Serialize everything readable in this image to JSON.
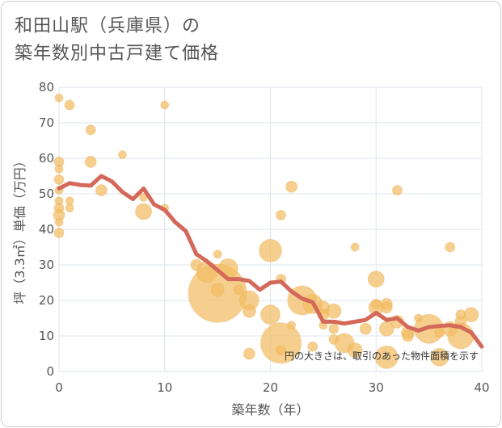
{
  "title_line1": "和田山駅（兵庫県）の",
  "title_line2": "築年数別中古戸建て価格",
  "chart_data": {
    "type": "scatter",
    "xlabel": "築年数（年）",
    "ylabel": "坪（3.3㎡）単価（万円）",
    "xlim": [
      0,
      40
    ],
    "ylim": [
      0,
      80
    ],
    "xticks": [
      0,
      10,
      20,
      30,
      40
    ],
    "yticks": [
      0,
      10,
      20,
      30,
      40,
      50,
      60,
      70,
      80
    ],
    "grid": true,
    "annotation": "円の大きさは、取引のあった物件面積を示す",
    "colors": {
      "bubble": "#f2bd63",
      "line": "#d4695a",
      "grid": "#dce6ef"
    },
    "points": [
      {
        "x": 0,
        "y": 77,
        "s": 5
      },
      {
        "x": 0,
        "y": 59,
        "s": 6
      },
      {
        "x": 0,
        "y": 57,
        "s": 5
      },
      {
        "x": 0,
        "y": 54,
        "s": 6
      },
      {
        "x": 0,
        "y": 51,
        "s": 5
      },
      {
        "x": 0,
        "y": 48,
        "s": 5
      },
      {
        "x": 0,
        "y": 46,
        "s": 6
      },
      {
        "x": 0,
        "y": 44,
        "s": 7
      },
      {
        "x": 0,
        "y": 42,
        "s": 5
      },
      {
        "x": 0,
        "y": 39,
        "s": 6
      },
      {
        "x": 1,
        "y": 75,
        "s": 6
      },
      {
        "x": 1,
        "y": 48,
        "s": 5
      },
      {
        "x": 1,
        "y": 46,
        "s": 5
      },
      {
        "x": 3,
        "y": 68,
        "s": 6
      },
      {
        "x": 3,
        "y": 59,
        "s": 7
      },
      {
        "x": 4,
        "y": 51,
        "s": 7
      },
      {
        "x": 6,
        "y": 61,
        "s": 5
      },
      {
        "x": 8,
        "y": 49,
        "s": 5
      },
      {
        "x": 8,
        "y": 45,
        "s": 10
      },
      {
        "x": 10,
        "y": 75,
        "s": 5
      },
      {
        "x": 10,
        "y": 46,
        "s": 5
      },
      {
        "x": 13,
        "y": 30,
        "s": 7
      },
      {
        "x": 14,
        "y": 28,
        "s": 13
      },
      {
        "x": 15,
        "y": 33,
        "s": 5
      },
      {
        "x": 15,
        "y": 22,
        "s": 36
      },
      {
        "x": 15,
        "y": 23,
        "s": 8
      },
      {
        "x": 16,
        "y": 29,
        "s": 12
      },
      {
        "x": 17,
        "y": 23,
        "s": 6
      },
      {
        "x": 18,
        "y": 20,
        "s": 12
      },
      {
        "x": 18,
        "y": 17,
        "s": 8
      },
      {
        "x": 18,
        "y": 5,
        "s": 7
      },
      {
        "x": 20,
        "y": 34,
        "s": 14
      },
      {
        "x": 20,
        "y": 16,
        "s": 12
      },
      {
        "x": 21,
        "y": 44,
        "s": 6
      },
      {
        "x": 21,
        "y": 26,
        "s": 6
      },
      {
        "x": 21,
        "y": 8,
        "s": 25
      },
      {
        "x": 21,
        "y": 6,
        "s": 6
      },
      {
        "x": 22,
        "y": 52,
        "s": 7
      },
      {
        "x": 22,
        "y": 13,
        "s": 5
      },
      {
        "x": 23,
        "y": 20,
        "s": 18
      },
      {
        "x": 24,
        "y": 19,
        "s": 12
      },
      {
        "x": 24,
        "y": 7,
        "s": 6
      },
      {
        "x": 25,
        "y": 18,
        "s": 8
      },
      {
        "x": 25,
        "y": 16,
        "s": 7
      },
      {
        "x": 25,
        "y": 13,
        "s": 5
      },
      {
        "x": 26,
        "y": 17,
        "s": 9
      },
      {
        "x": 26,
        "y": 12,
        "s": 6
      },
      {
        "x": 26,
        "y": 9,
        "s": 6
      },
      {
        "x": 27,
        "y": 8,
        "s": 12
      },
      {
        "x": 28,
        "y": 35,
        "s": 5
      },
      {
        "x": 28,
        "y": 6,
        "s": 9
      },
      {
        "x": 29,
        "y": 12,
        "s": 7
      },
      {
        "x": 30,
        "y": 26,
        "s": 10
      },
      {
        "x": 30,
        "y": 19,
        "s": 6
      },
      {
        "x": 30,
        "y": 18,
        "s": 9
      },
      {
        "x": 31,
        "y": 19,
        "s": 7
      },
      {
        "x": 31,
        "y": 18,
        "s": 7
      },
      {
        "x": 31,
        "y": 12,
        "s": 9
      },
      {
        "x": 31,
        "y": 4,
        "s": 14
      },
      {
        "x": 32,
        "y": 51,
        "s": 6
      },
      {
        "x": 32,
        "y": 14,
        "s": 8
      },
      {
        "x": 33,
        "y": 11,
        "s": 8
      },
      {
        "x": 33,
        "y": 10,
        "s": 7
      },
      {
        "x": 34,
        "y": 15,
        "s": 5
      },
      {
        "x": 35,
        "y": 12,
        "s": 18
      },
      {
        "x": 36,
        "y": 11,
        "s": 6
      },
      {
        "x": 36,
        "y": 4,
        "s": 11
      },
      {
        "x": 37,
        "y": 35,
        "s": 6
      },
      {
        "x": 37,
        "y": 12,
        "s": 9
      },
      {
        "x": 38,
        "y": 16,
        "s": 6
      },
      {
        "x": 38,
        "y": 14,
        "s": 7
      },
      {
        "x": 38,
        "y": 10,
        "s": 16
      },
      {
        "x": 39,
        "y": 16,
        "s": 9
      }
    ],
    "average_line": [
      {
        "x": 0,
        "y": 51.5
      },
      {
        "x": 1,
        "y": 53
      },
      {
        "x": 2,
        "y": 52.5
      },
      {
        "x": 3,
        "y": 52.3
      },
      {
        "x": 4,
        "y": 55
      },
      {
        "x": 5,
        "y": 53.5
      },
      {
        "x": 6,
        "y": 50.5
      },
      {
        "x": 7,
        "y": 48.5
      },
      {
        "x": 8,
        "y": 51.5
      },
      {
        "x": 9,
        "y": 47
      },
      {
        "x": 10,
        "y": 45.5
      },
      {
        "x": 11,
        "y": 42
      },
      {
        "x": 12,
        "y": 39.5
      },
      {
        "x": 13,
        "y": 33
      },
      {
        "x": 14,
        "y": 31
      },
      {
        "x": 15,
        "y": 28.5
      },
      {
        "x": 16,
        "y": 26
      },
      {
        "x": 17,
        "y": 26
      },
      {
        "x": 18,
        "y": 25.5
      },
      {
        "x": 19,
        "y": 23
      },
      {
        "x": 20,
        "y": 25
      },
      {
        "x": 21,
        "y": 25.3
      },
      {
        "x": 22,
        "y": 22.5
      },
      {
        "x": 23,
        "y": 20.5
      },
      {
        "x": 24,
        "y": 19.5
      },
      {
        "x": 25,
        "y": 14
      },
      {
        "x": 26,
        "y": 14
      },
      {
        "x": 27,
        "y": 13.5
      },
      {
        "x": 28,
        "y": 14
      },
      {
        "x": 29,
        "y": 14.5
      },
      {
        "x": 30,
        "y": 16.5
      },
      {
        "x": 31,
        "y": 14.5
      },
      {
        "x": 32,
        "y": 15
      },
      {
        "x": 33,
        "y": 12.5
      },
      {
        "x": 34,
        "y": 11.5
      },
      {
        "x": 35,
        "y": 12.5
      },
      {
        "x": 36,
        "y": 12.8
      },
      {
        "x": 37,
        "y": 13
      },
      {
        "x": 38,
        "y": 12.5
      },
      {
        "x": 39,
        "y": 11
      },
      {
        "x": 40,
        "y": 7
      }
    ]
  }
}
